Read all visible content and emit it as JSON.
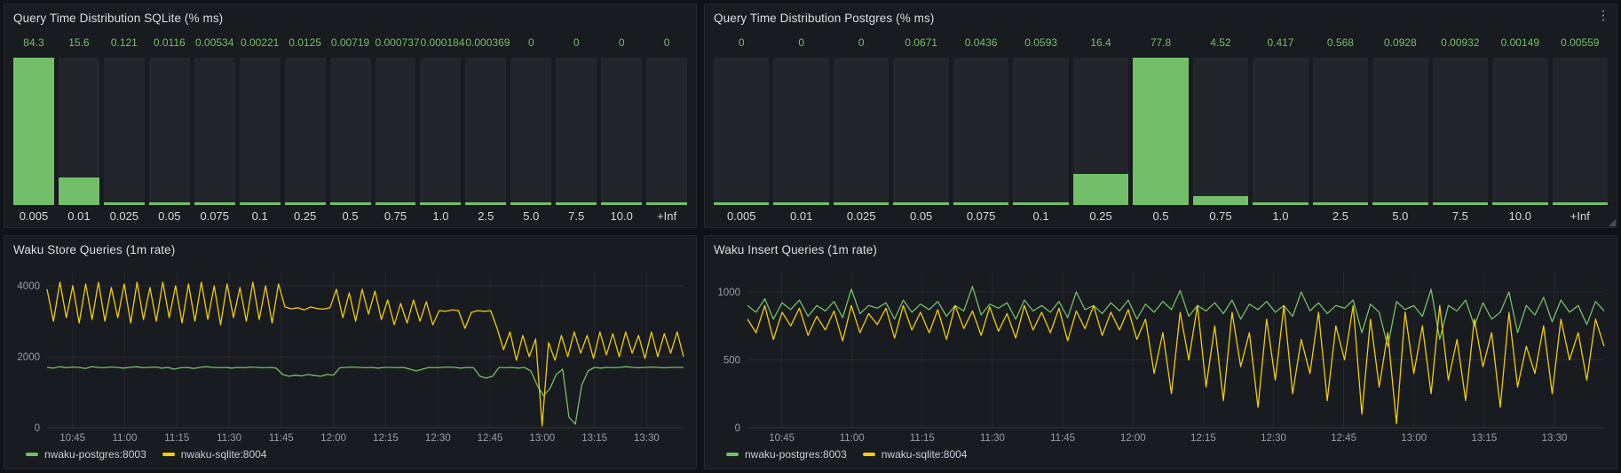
{
  "icons": {
    "panel_menu": "⋮"
  },
  "colors": {
    "page_background": "#111217",
    "panel_background": "#181b1f",
    "green_series": "#73bf69",
    "yellow_series": "#f2cc0c",
    "bar_background": "#22252b",
    "value_text": "#73bf69"
  },
  "chart_data": [
    {
      "type": "bar",
      "title": "Query Time Distribution SQLite (% ms)",
      "categories": [
        "0.005",
        "0.01",
        "0.025",
        "0.05",
        "0.075",
        "0.1",
        "0.25",
        "0.5",
        "0.75",
        "1.0",
        "2.5",
        "5.0",
        "7.5",
        "10.0",
        "+Inf"
      ],
      "values": [
        84.3,
        15.6,
        0.121,
        0.0116,
        0.00534,
        0.00221,
        0.0125,
        0.00719,
        0.000737,
        0.000184,
        0.000369,
        0,
        0,
        0,
        0
      ],
      "value_labels": [
        "84.3",
        "15.6",
        "0.121",
        "0.0116",
        "0.00534",
        "0.00221",
        "0.0125",
        "0.00719",
        "0.000737",
        "0.000184",
        "0.000369",
        "0",
        "0",
        "0",
        "0"
      ],
      "bar_color": "#73bf69",
      "bar_background": "#22252b",
      "scale": "relative-to-max",
      "xlabel": "",
      "ylabel": ""
    },
    {
      "type": "bar",
      "title": "Query Time Distribution Postgres (% ms)",
      "categories": [
        "0.005",
        "0.01",
        "0.025",
        "0.05",
        "0.075",
        "0.1",
        "0.25",
        "0.5",
        "0.75",
        "1.0",
        "2.5",
        "5.0",
        "7.5",
        "10.0",
        "+Inf"
      ],
      "values": [
        0,
        0,
        0,
        0.0671,
        0.0436,
        0.0593,
        16.4,
        77.8,
        4.52,
        0.417,
        0.568,
        0.0928,
        0.00932,
        0.00149,
        0.00559
      ],
      "value_labels": [
        "0",
        "0",
        "0",
        "0.0671",
        "0.0436",
        "0.0593",
        "16.4",
        "77.8",
        "4.52",
        "0.417",
        "0.568",
        "0.0928",
        "0.00932",
        "0.00149",
        "0.00559"
      ],
      "bar_color": "#73bf69",
      "bar_background": "#22252b",
      "scale": "relative-to-max",
      "xlabel": "",
      "ylabel": ""
    },
    {
      "type": "line",
      "title": "Waku Store Queries (1m rate)",
      "x_ticks": [
        "10:45",
        "11:00",
        "11:15",
        "11:30",
        "11:45",
        "12:00",
        "12:15",
        "12:30",
        "12:45",
        "13:00",
        "13:15",
        "13:30"
      ],
      "y_ticks": [
        0,
        2000,
        4000
      ],
      "ylim": [
        0,
        4400
      ],
      "grid": true,
      "legend_position": "bottom-left",
      "series": [
        {
          "name": "nwaku-postgres:8003",
          "color": "#73bf69",
          "values": [
            1700,
            1680,
            1720,
            1690,
            1710,
            1700,
            1670,
            1720,
            1700,
            1690,
            1710,
            1700,
            1680,
            1700,
            1720,
            1690,
            1700,
            1710,
            1680,
            1700,
            1650,
            1690,
            1700,
            1670,
            1700,
            1720,
            1700,
            1690,
            1700,
            1680,
            1700,
            1690,
            1710,
            1700,
            1690,
            1700,
            1680,
            1500,
            1450,
            1480,
            1460,
            1500,
            1470,
            1450,
            1500,
            1480,
            1690,
            1700,
            1710,
            1700,
            1690,
            1700,
            1680,
            1700,
            1700,
            1690,
            1700,
            1650,
            1600,
            1650,
            1700,
            1690,
            1700,
            1710,
            1700,
            1680,
            1700,
            1690,
            1450,
            1400,
            1450,
            1700,
            1690,
            1700,
            1680,
            1700,
            1600,
            1200,
            900,
            1100,
            1500,
            1650,
            300,
            100,
            1200,
            1600,
            1700,
            1680,
            1700,
            1690,
            1700,
            1720,
            1700,
            1690,
            1700,
            1710,
            1700,
            1690,
            1700,
            1700,
            1700
          ]
        },
        {
          "name": "nwaku-sqlite:8004",
          "color": "#f2cc0c",
          "values": [
            3900,
            3000,
            4100,
            3100,
            4000,
            2950,
            4050,
            3050,
            4100,
            3000,
            3950,
            3100,
            4050,
            2950,
            4100,
            3050,
            3950,
            3000,
            4100,
            3100,
            4000,
            2950,
            4050,
            3000,
            4100,
            3050,
            4000,
            2900,
            4050,
            3100,
            3950,
            3000,
            4100,
            3050,
            4000,
            2950,
            4050,
            3400,
            3350,
            3380,
            3320,
            3400,
            3360,
            3340,
            3380,
            3900,
            3100,
            3800,
            3000,
            3900,
            3200,
            3850,
            3050,
            3600,
            2900,
            3500,
            2950,
            3600,
            3000,
            3550,
            2900,
            3300,
            3280,
            3320,
            3300,
            2800,
            3250,
            3300,
            3280,
            3300,
            2800,
            2200,
            2700,
            1900,
            2600,
            2000,
            2500,
            50,
            2400,
            1900,
            2600,
            2000,
            2700,
            2100,
            2600,
            1950,
            2700,
            2050,
            2650,
            2000,
            2700,
            2100,
            2600,
            1950,
            2700,
            2000,
            2650,
            2100,
            2700,
            2000
          ]
        }
      ]
    },
    {
      "type": "line",
      "title": "Waku Insert Queries (1m rate)",
      "x_ticks": [
        "10:45",
        "11:00",
        "11:15",
        "11:30",
        "11:45",
        "12:00",
        "12:15",
        "12:30",
        "12:45",
        "13:00",
        "13:15",
        "13:30"
      ],
      "y_ticks": [
        0,
        500,
        1000
      ],
      "ylim": [
        0,
        1150
      ],
      "grid": true,
      "legend_position": "bottom-left",
      "series": [
        {
          "name": "nwaku-postgres:8003",
          "color": "#73bf69",
          "values": [
            900,
            850,
            950,
            800,
            920,
            870,
            940,
            820,
            900,
            860,
            930,
            810,
            1020,
            840,
            900,
            880,
            920,
            800,
            940,
            850,
            910,
            870,
            930,
            820,
            900,
            860,
            1040,
            830,
            910,
            880,
            920,
            800,
            940,
            860,
            900,
            850,
            930,
            810,
            1000,
            870,
            900,
            840,
            920,
            860,
            940,
            800,
            910,
            850,
            930,
            870,
            1010,
            820,
            900,
            860,
            920,
            840,
            940,
            800,
            910,
            870,
            930,
            850,
            900,
            820,
            1000,
            860,
            920,
            840,
            900,
            880,
            940,
            700,
            910,
            850,
            600,
            930,
            870,
            900,
            820,
            1020,
            650,
            900,
            860,
            940,
            750,
            920,
            800,
            850,
            1000,
            700,
            900,
            830,
            960,
            780,
            940,
            850,
            900,
            760,
            930,
            860
          ]
        },
        {
          "name": "nwaku-sqlite:8004",
          "color": "#f2cc0c",
          "values": [
            800,
            700,
            900,
            650,
            850,
            750,
            880,
            680,
            820,
            720,
            860,
            640,
            900,
            700,
            840,
            760,
            880,
            660,
            900,
            720,
            850,
            700,
            870,
            650,
            900,
            730,
            860,
            680,
            890,
            710,
            840,
            660,
            900,
            720,
            850,
            700,
            880,
            640,
            860,
            730,
            900,
            680,
            850,
            720,
            870,
            650,
            800,
            400,
            700,
            250,
            850,
            500,
            900,
            300,
            750,
            200,
            850,
            450,
            700,
            150,
            800,
            350,
            900,
            250,
            650,
            400,
            850,
            200,
            750,
            500,
            900,
            100,
            800,
            300,
            700,
            30,
            850,
            400,
            750,
            250,
            900,
            350,
            650,
            200,
            800,
            450,
            700,
            150,
            850,
            300,
            600,
            400,
            750,
            250,
            800,
            500,
            700,
            350,
            800,
            600
          ]
        }
      ]
    }
  ]
}
